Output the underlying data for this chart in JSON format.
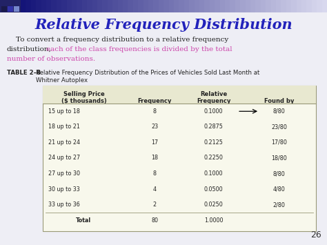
{
  "title": "Relative Frequency Distribution",
  "title_color": "#2222bb",
  "title_fontsize": 15,
  "body_color": "#222222",
  "body_colored_color": "#cc44aa",
  "table_caption_bold": "TABLE 2–8",
  "col_headers_line1": [
    "Selling Price",
    "",
    "Relative",
    ""
  ],
  "col_headers_line2": [
    "($ thousands)",
    "Frequency",
    "Frequency",
    "Found by"
  ],
  "rows": [
    [
      "15 up to 18",
      "8",
      "0.1000",
      "8/80"
    ],
    [
      "18 up to 21",
      "23",
      "0.2875",
      "23/80"
    ],
    [
      "21 up to 24",
      "17",
      "0.2125",
      "17/80"
    ],
    [
      "24 up to 27",
      "18",
      "0.2250",
      "18/80"
    ],
    [
      "27 up to 30",
      "8",
      "0.1000",
      "8/80"
    ],
    [
      "30 up to 33",
      "4",
      "0.0500",
      "4/80"
    ],
    [
      "33 up to 36",
      "2",
      "0.0250",
      "2/80"
    ]
  ],
  "total_row": [
    "Total",
    "80",
    "1.0000",
    ""
  ],
  "page_number": "26",
  "slide_bg": "#eeeef5",
  "table_header_bg": "#e8e8d0",
  "table_body_bg": "#f8f8ec",
  "table_border": "#999977",
  "topbar_colors": [
    "#111155",
    "#3333aa",
    "#6666cc",
    "#9999cc",
    "#bbbbdd",
    "#ddddee"
  ],
  "topbar_left_squares": [
    "#333366",
    "#555599",
    "#7777aa"
  ]
}
